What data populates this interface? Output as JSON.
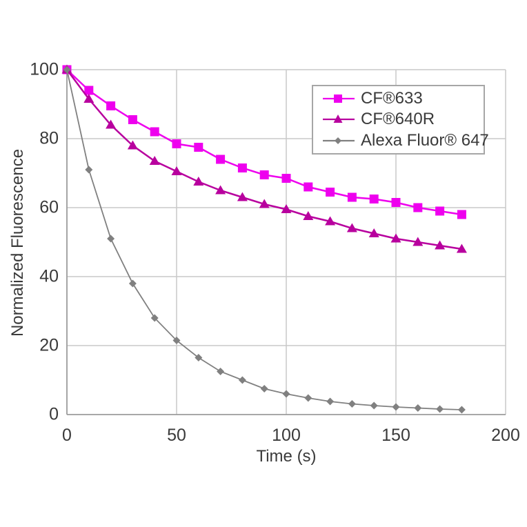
{
  "chart_data": {
    "type": "line",
    "title": "",
    "xlabel": "Time (s)",
    "ylabel": "Normalized Fluorescence",
    "xlim": [
      0,
      200
    ],
    "ylim": [
      0,
      100
    ],
    "x_ticks": [
      0,
      50,
      100,
      150,
      200
    ],
    "x_tick_labels": [
      "0",
      "50",
      "100",
      "150",
      "200"
    ],
    "y_ticks": [
      0,
      20,
      40,
      60,
      80,
      100
    ],
    "y_tick_labels": [
      "0",
      "20",
      "40",
      "60",
      "80",
      "100"
    ],
    "grid": true,
    "legend_position": "inside-top-right",
    "x": [
      0,
      10,
      20,
      30,
      40,
      50,
      60,
      70,
      80,
      90,
      100,
      110,
      120,
      130,
      140,
      150,
      160,
      170,
      180
    ],
    "series": [
      {
        "name": "CF®633",
        "marker": "square",
        "color": "#ee00ee",
        "values": [
          100,
          94,
          89.5,
          85.5,
          82,
          78.5,
          77.5,
          74,
          71.5,
          69.5,
          68.5,
          66,
          64.5,
          63,
          62.5,
          61.5,
          60,
          59,
          58
        ]
      },
      {
        "name": "CF®640R",
        "marker": "triangle",
        "color": "#b8009e",
        "values": [
          100,
          91.5,
          84,
          78,
          73.5,
          70.5,
          67.5,
          65,
          63,
          61,
          59.5,
          57.5,
          56,
          54,
          52.5,
          51,
          50,
          49,
          48
        ]
      },
      {
        "name": "Alexa Fluor® 647",
        "marker": "diamond",
        "color": "#808080",
        "values": [
          100,
          71,
          51,
          38,
          28,
          21.5,
          16.5,
          12.5,
          10,
          7.5,
          6,
          4.8,
          3.8,
          3.1,
          2.6,
          2.2,
          1.9,
          1.6,
          1.4
        ]
      }
    ]
  },
  "style": {
    "grid_color": "#c9c9c9",
    "axis_color": "#9b9b9b",
    "text_color": "#3a3a3a",
    "background": "#ffffff"
  }
}
